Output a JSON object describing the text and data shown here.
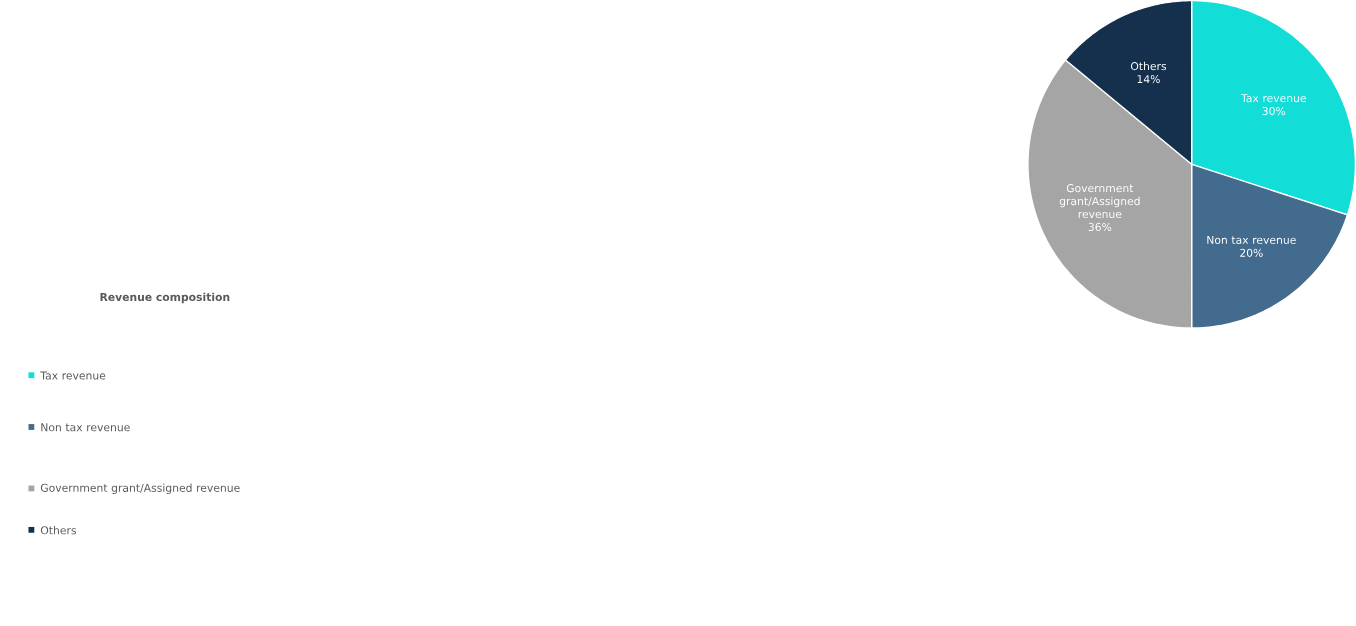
{
  "chart_data": {
    "type": "pie",
    "title": "Revenue composition",
    "categories": [
      "Tax revenue",
      "Non tax revenue",
      "Government grant/Assigned revenue",
      "Others"
    ],
    "values": [
      30,
      20,
      36,
      14
    ],
    "value_labels": [
      "30%",
      "20%",
      "36%",
      "14%"
    ],
    "colors": [
      "#12ddd6",
      "#426b8e",
      "#a5a5a5",
      "#15304d"
    ],
    "legend": "left"
  }
}
